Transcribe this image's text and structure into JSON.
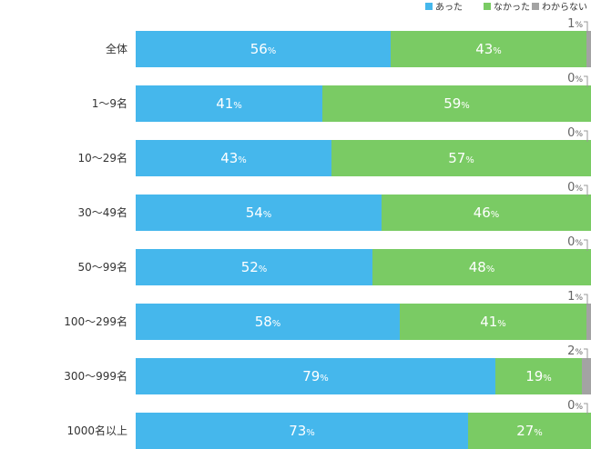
{
  "chart_data": {
    "type": "bar",
    "orientation": "horizontal",
    "stacked": true,
    "percent_suffix": "%",
    "legend_position": "top-right",
    "categories": [
      "全体",
      "1〜9名",
      "10〜29名",
      "30〜49名",
      "50〜99名",
      "100〜299名",
      "300〜999名",
      "1000名以上"
    ],
    "series": [
      {
        "name": "あった",
        "color": "#45b7ec",
        "values": [
          56,
          41,
          43,
          54,
          52,
          58,
          79,
          73
        ]
      },
      {
        "name": "なかった",
        "color": "#7acb64",
        "values": [
          43,
          59,
          57,
          46,
          48,
          41,
          19,
          27
        ]
      },
      {
        "name": "わからない",
        "color": "#a3a3a3",
        "values": [
          1,
          0,
          0,
          0,
          0,
          1,
          2,
          0
        ]
      }
    ],
    "xlim": [
      0,
      100
    ],
    "grid": false
  }
}
